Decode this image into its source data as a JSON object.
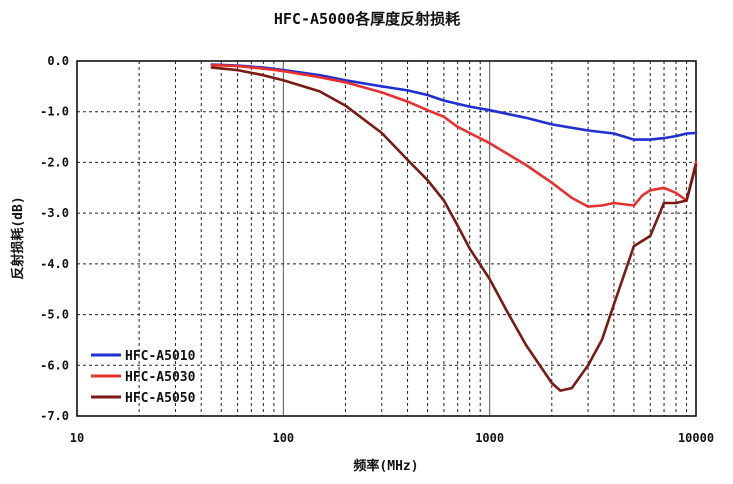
{
  "chart_data": {
    "type": "line",
    "title": "HFC-A5000各厚度反射损耗",
    "xlabel": "频率(MHz)",
    "ylabel": "反射损耗(dB)",
    "x_scale": "log",
    "xlim": [
      10,
      10000
    ],
    "ylim": [
      -7.0,
      0.0
    ],
    "x_ticks": [
      "10",
      "100",
      "1000",
      "10000"
    ],
    "y_ticks": [
      "0.0",
      "-1.0",
      "-2.0",
      "-3.0",
      "-4.0",
      "-5.0",
      "-6.0",
      "-7.0"
    ],
    "grid": true,
    "legend_position": "bottom-left",
    "series": [
      {
        "name": "HFC-A5010",
        "color": "#1f2fd0",
        "x": [
          45,
          60,
          80,
          100,
          150,
          200,
          300,
          400,
          500,
          600,
          800,
          1000,
          1500,
          2000,
          3000,
          4000,
          5000,
          6000,
          7000,
          8000,
          9000,
          10000
        ],
        "y": [
          -0.07,
          -0.09,
          -0.13,
          -0.18,
          -0.28,
          -0.38,
          -0.5,
          -0.58,
          -0.67,
          -0.78,
          -0.9,
          -0.97,
          -1.12,
          -1.25,
          -1.37,
          -1.43,
          -1.55,
          -1.55,
          -1.52,
          -1.48,
          -1.43,
          -1.42
        ]
      },
      {
        "name": "HFC-A5030",
        "color": "#e83030",
        "x": [
          45,
          60,
          80,
          100,
          150,
          200,
          300,
          400,
          500,
          600,
          700,
          800,
          1000,
          1500,
          2000,
          2500,
          3000,
          3500,
          4000,
          5000,
          5500,
          6000,
          7000,
          8000,
          9000,
          10000
        ],
        "y": [
          -0.08,
          -0.1,
          -0.15,
          -0.2,
          -0.32,
          -0.42,
          -0.62,
          -0.8,
          -0.97,
          -1.1,
          -1.3,
          -1.42,
          -1.62,
          -2.05,
          -2.4,
          -2.7,
          -2.87,
          -2.85,
          -2.8,
          -2.85,
          -2.65,
          -2.55,
          -2.5,
          -2.6,
          -2.75,
          -2.0
        ]
      },
      {
        "name": "HFC-A5050",
        "color": "#7a1a12",
        "x": [
          45,
          60,
          80,
          100,
          150,
          200,
          300,
          400,
          500,
          600,
          700,
          800,
          1000,
          1200,
          1500,
          2000,
          2200,
          2500,
          3000,
          3500,
          4000,
          5000,
          6000,
          7000,
          8000,
          9000,
          10000
        ],
        "y": [
          -0.13,
          -0.18,
          -0.28,
          -0.38,
          -0.6,
          -0.88,
          -1.42,
          -1.95,
          -2.35,
          -2.75,
          -3.25,
          -3.7,
          -4.3,
          -4.9,
          -5.6,
          -6.35,
          -6.5,
          -6.45,
          -6.0,
          -5.5,
          -4.8,
          -3.65,
          -3.45,
          -2.8,
          -2.8,
          -2.75,
          -2.05
        ]
      }
    ]
  }
}
